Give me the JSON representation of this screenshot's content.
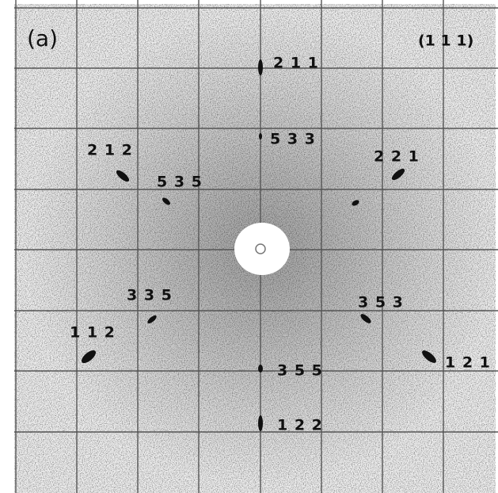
{
  "panel_label": "(a)",
  "orientation": "(1 1 1)",
  "spots": [
    "2 1 1",
    "5 3 3",
    "2 1 2",
    "5 3 5",
    "2 2 1",
    "3 3 5",
    "3 5 3",
    "1 1 2",
    "1 2 1",
    "3 5 5",
    "1 2 2"
  ]
}
